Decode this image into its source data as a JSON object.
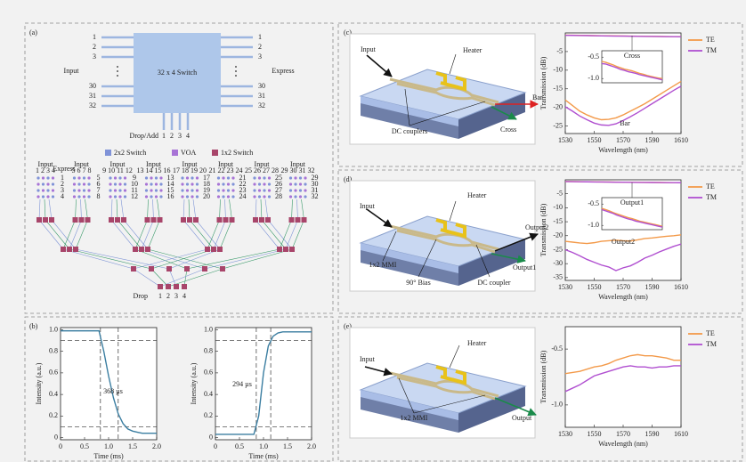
{
  "panel_a": {
    "label": "(a)",
    "switch_label": "32 x 4 Switch",
    "input_label": "Input",
    "express_label": "Express",
    "input_ports": [
      "1",
      "2",
      "3",
      "30",
      "31",
      "32"
    ],
    "express_ports": [
      "1",
      "2",
      "3",
      "30",
      "31",
      "32"
    ],
    "drop_add_label": "Drop/Add",
    "drop_add_ports": [
      "1",
      "2",
      "3",
      "4"
    ],
    "legend": [
      {
        "label": "2x2 Switch",
        "color": "#8093d8"
      },
      {
        "label": "VOA",
        "color": "#a874d6"
      },
      {
        "label": "1x2 Switch",
        "color": "#a8456a"
      }
    ],
    "schematic": {
      "express_label": "Express",
      "drop_label": "Drop",
      "drop_ports": [
        "1",
        "2",
        "3",
        "4"
      ],
      "groups": [
        {
          "input": "Input",
          "ports": "1 2 3 4",
          "express": [
            "1",
            "2",
            "3",
            "4"
          ]
        },
        {
          "input": "Input",
          "ports": "5 6 7 8",
          "express": [
            "5",
            "6",
            "7",
            "8"
          ]
        },
        {
          "input": "Input",
          "ports": "9 10 11 12",
          "express": [
            "9",
            "10",
            "11",
            "12"
          ]
        },
        {
          "input": "Input",
          "ports": "13 14 15 16",
          "express": [
            "13",
            "14",
            "15",
            "16"
          ]
        },
        {
          "input": "Input",
          "ports": "17 18 19 20",
          "express": [
            "17",
            "18",
            "19",
            "20"
          ]
        },
        {
          "input": "Input",
          "ports": "21 22 23 24",
          "express": [
            "21",
            "22",
            "23",
            "24"
          ]
        },
        {
          "input": "Input",
          "ports": "25 26 27 28",
          "express": [
            "25",
            "26",
            "27",
            "28"
          ]
        },
        {
          "input": "Input",
          "ports": "29 30 31 32",
          "express": [
            "29",
            "30",
            "31",
            "32"
          ]
        }
      ]
    }
  },
  "panel_b": {
    "label": "(b)"
  },
  "panel_c": {
    "label": "(c)",
    "device": [
      "Input",
      "Heater",
      "DC couplers",
      "Bar",
      "Cross"
    ]
  },
  "panel_d": {
    "label": "(d)",
    "device": [
      "Input",
      "Heater",
      "Output2",
      "Output1",
      "1x2 MMI",
      "90° Bias",
      "DC coupler"
    ]
  },
  "panel_e": {
    "label": "(e)",
    "device": [
      "Input",
      "Heater",
      "Output",
      "1x2 MMI"
    ]
  },
  "chart_data": [
    {
      "type": "line",
      "x": [
        0,
        0.1,
        0.2,
        0.3,
        0.4,
        0.5,
        0.6,
        0.7,
        0.8,
        0.9,
        1,
        1.1,
        1.2,
        1.3,
        1.4,
        1.5,
        1.6,
        1.7,
        1.8,
        1.9,
        2
      ],
      "series": [
        {
          "color": "#3b7ea1",
          "values": [
            0.99,
            0.99,
            0.99,
            0.99,
            0.99,
            0.99,
            0.99,
            0.99,
            0.99,
            0.8,
            0.57,
            0.37,
            0.22,
            0.13,
            0.08,
            0.06,
            0.05,
            0.04,
            0.04,
            0.04,
            0.04
          ]
        }
      ],
      "xlim": [
        0,
        2
      ],
      "ylim": [
        -0.02,
        1.02
      ],
      "xticks": [
        0,
        0.5,
        {
          "value": 1,
          "label": "1.0"
        },
        1.5,
        {
          "value": 2,
          "label": "2.0"
        }
      ],
      "yticks": [
        0,
        0.2,
        0.4,
        0.6,
        0.8,
        {
          "value": 1,
          "label": "1.0"
        }
      ],
      "xlabel": "Time (ms)",
      "ylabel": "Intensity (a.u.)",
      "reference_lines": {
        "x": [
          0.83,
          1.2
        ],
        "y": [
          0.1,
          0.9
        ]
      },
      "annotations": [
        "368 µs"
      ]
    },
    {
      "type": "line",
      "x": [
        0,
        0.1,
        0.2,
        0.3,
        0.4,
        0.5,
        0.6,
        0.7,
        0.8,
        0.9,
        1,
        1.1,
        1.2,
        1.3,
        1.4,
        1.5,
        1.6,
        1.7,
        1.8,
        1.9,
        2
      ],
      "series": [
        {
          "color": "#3b7ea1",
          "values": [
            0.03,
            0.03,
            0.03,
            0.03,
            0.03,
            0.03,
            0.03,
            0.03,
            0.03,
            0.2,
            0.6,
            0.85,
            0.94,
            0.97,
            0.98,
            0.98,
            0.98,
            0.98,
            0.98,
            0.98,
            0.98
          ]
        }
      ],
      "xlim": [
        0,
        2
      ],
      "ylim": [
        -0.02,
        1.02
      ],
      "xticks": [
        0,
        0.5,
        {
          "value": 1,
          "label": "1.0"
        },
        1.5,
        {
          "value": 2,
          "label": "2.0"
        }
      ],
      "yticks": [
        0,
        0.2,
        0.4,
        0.6,
        0.8,
        {
          "value": 1,
          "label": "1.0"
        }
      ],
      "xlabel": "Time (ms)",
      "ylabel": "Intensity (a.u.)",
      "reference_lines": {
        "x": [
          0.85,
          1.15
        ],
        "y": [
          0.1,
          0.9
        ]
      },
      "annotations": [
        "294 µs"
      ]
    },
    {
      "type": "line",
      "x": [
        1530,
        1535,
        1540,
        1545,
        1550,
        1555,
        1560,
        1565,
        1570,
        1575,
        1580,
        1585,
        1590,
        1595,
        1600,
        1605,
        1610
      ],
      "series": [
        {
          "name": "TE",
          "color": "#f39a4a",
          "values": [
            -0.6,
            -0.62,
            -0.65,
            -0.68,
            -0.72,
            -0.75,
            -0.78,
            -0.8,
            -0.82,
            -0.85,
            -0.88,
            -0.9,
            -0.93,
            -0.95,
            -0.97,
            -0.99,
            -1.0
          ]
        },
        {
          "name": "TM",
          "color": "#b04fd0",
          "values": [
            -0.65,
            -0.66,
            -0.69,
            -0.72,
            -0.75,
            -0.79,
            -0.81,
            -0.84,
            -0.86,
            -0.88,
            -0.91,
            -0.93,
            -0.95,
            -0.97,
            -0.99,
            -1.01,
            -1.03
          ]
        },
        {
          "color": "#f39a4a",
          "values": [
            -18,
            -19.5,
            -21,
            -22,
            -22.8,
            -23.3,
            -23.2,
            -22.8,
            -22,
            -21,
            -20,
            -19,
            -17.8,
            -16.6,
            -15.4,
            -14.2,
            -13
          ]
        },
        {
          "color": "#b04fd0",
          "values": [
            -19.8,
            -21,
            -22.3,
            -23.3,
            -24.2,
            -24.7,
            -24.8,
            -24.4,
            -23.5,
            -22.5,
            -21.4,
            -20.2,
            -19,
            -17.8,
            -16.6,
            -15.4,
            -14.3
          ]
        }
      ],
      "xlim": [
        1530,
        1610
      ],
      "ylim": [
        -27,
        0
      ],
      "xticks": [
        1530,
        1550,
        1570,
        1590,
        1610
      ],
      "yticks": [
        -5,
        -10,
        -15,
        -20,
        -25
      ],
      "xlabel": "Wavelength (nm)",
      "ylabel": "Transmission (dB)",
      "legend": "outside-right",
      "annotations": [
        "Bar"
      ],
      "inset": {
        "label": "Cross",
        "ylim": [
          -1.1,
          -0.35
        ],
        "yticks": [
          -0.5,
          {
            "value": -1,
            "label": "-1.0"
          }
        ]
      }
    },
    {
      "type": "line",
      "x": [
        1530,
        1535,
        1540,
        1545,
        1550,
        1555,
        1560,
        1565,
        1570,
        1575,
        1580,
        1585,
        1590,
        1595,
        1600,
        1605,
        1610
      ],
      "series": [
        {
          "name": "TE",
          "color": "#f39a4a",
          "values": [
            -0.6,
            -0.63,
            -0.66,
            -0.7,
            -0.73,
            -0.76,
            -0.79,
            -0.82,
            -0.84,
            -0.87,
            -0.9,
            -0.92,
            -0.94,
            -0.96,
            -0.98,
            -1.0,
            -1.02
          ]
        },
        {
          "name": "TM",
          "color": "#b04fd0",
          "values": [
            -0.63,
            -0.66,
            -0.69,
            -0.72,
            -0.76,
            -0.79,
            -0.82,
            -0.85,
            -0.87,
            -0.9,
            -0.92,
            -0.94,
            -0.96,
            -0.98,
            -1.0,
            -1.02,
            -1.04
          ]
        },
        {
          "color": "#f39a4a",
          "values": [
            -22,
            -22.3,
            -22.6,
            -22.8,
            -22.5,
            -22,
            -21.8,
            -21.6,
            -21.8,
            -21.9,
            -21.5,
            -21,
            -20.8,
            -20.5,
            -20.2,
            -20,
            -19.7
          ]
        },
        {
          "color": "#b04fd0",
          "values": [
            -25,
            -26,
            -27.2,
            -28.5,
            -29.5,
            -30.5,
            -31.2,
            -32.5,
            -31.5,
            -30.8,
            -29.5,
            -28,
            -27,
            -25.8,
            -24.8,
            -23.8,
            -23
          ]
        }
      ],
      "xlim": [
        1530,
        1610
      ],
      "ylim": [
        -36,
        0
      ],
      "xticks": [
        1530,
        1550,
        1570,
        1590,
        1610
      ],
      "yticks": [
        -5,
        -10,
        -15,
        -20,
        -25,
        -30,
        -35
      ],
      "xlabel": "Wavelength (nm)",
      "ylabel": "Transmission (dB)",
      "legend": "outside-right",
      "annotations": [
        "Output2"
      ],
      "inset": {
        "label": "Output1",
        "ylim": [
          -1.1,
          -0.35
        ],
        "yticks": [
          -0.5,
          {
            "value": -1,
            "label": "-1.0"
          }
        ]
      }
    },
    {
      "type": "line",
      "x": [
        1530,
        1535,
        1540,
        1545,
        1550,
        1555,
        1560,
        1565,
        1570,
        1575,
        1580,
        1585,
        1590,
        1595,
        1600,
        1605,
        1610
      ],
      "series": [
        {
          "name": "TE",
          "color": "#f39a4a",
          "values": [
            -0.72,
            -0.71,
            -0.7,
            -0.68,
            -0.66,
            -0.65,
            -0.63,
            -0.6,
            -0.58,
            -0.56,
            -0.55,
            -0.56,
            -0.56,
            -0.57,
            -0.58,
            -0.6,
            -0.6
          ]
        },
        {
          "name": "TM",
          "color": "#b04fd0",
          "values": [
            -0.88,
            -0.85,
            -0.82,
            -0.78,
            -0.74,
            -0.72,
            -0.7,
            -0.68,
            -0.66,
            -0.65,
            -0.66,
            -0.66,
            -0.67,
            -0.66,
            -0.66,
            -0.65,
            -0.65
          ]
        }
      ],
      "xlim": [
        1530,
        1610
      ],
      "ylim": [
        -1.2,
        -0.3
      ],
      "xticks": [
        1530,
        1550,
        1570,
        1590,
        1610
      ],
      "yticks": [
        -0.5,
        {
          "value": -1,
          "label": "-1.0"
        }
      ],
      "xlabel": "Wavelength (nm)",
      "ylabel": "Transmission (dB)",
      "legend": "outside-right"
    }
  ]
}
